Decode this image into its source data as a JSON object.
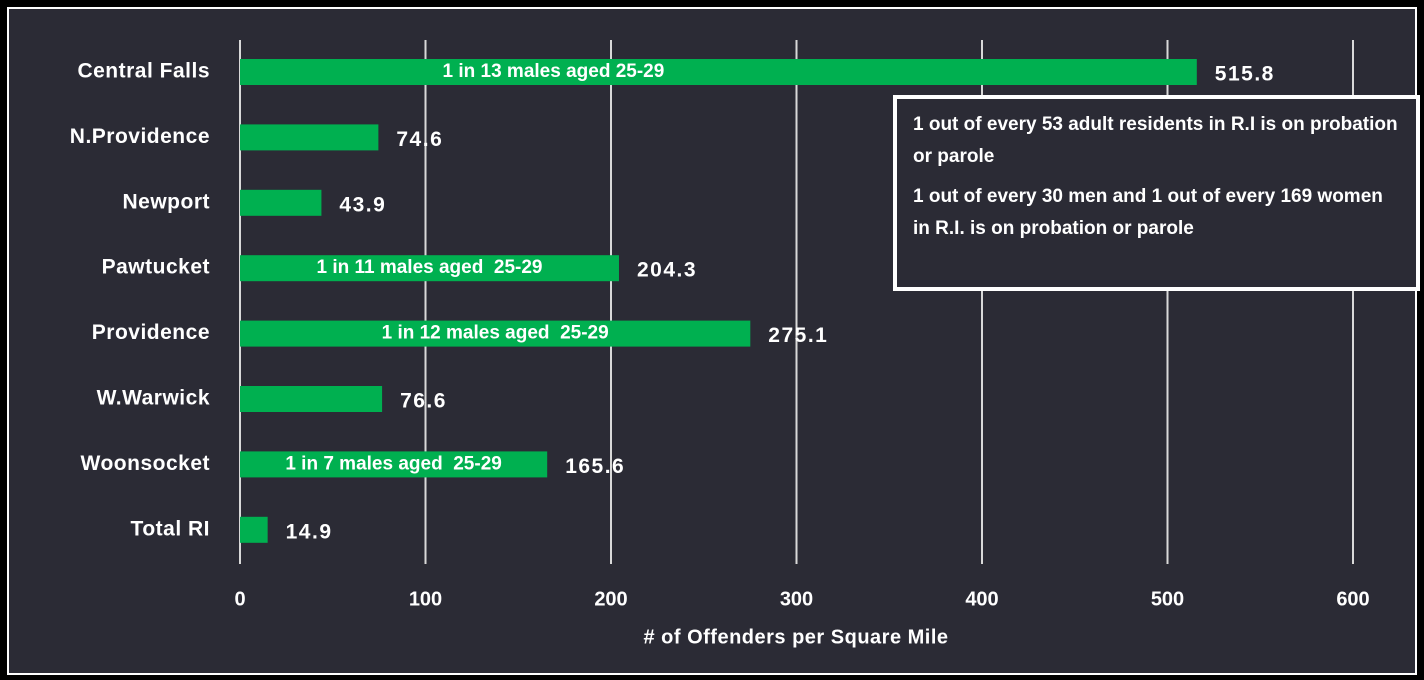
{
  "chart_data": {
    "type": "bar",
    "orientation": "horizontal",
    "categories": [
      "Central Falls",
      "N.Providence",
      "Newport",
      "Pawtucket",
      "Providence",
      "W.Warwick",
      "Woonsocket",
      "Total RI"
    ],
    "values": [
      515.8,
      74.6,
      43.9,
      204.3,
      275.1,
      76.6,
      165.6,
      14.9
    ],
    "bar_annotations": [
      "1 in 13 males aged 25-29",
      null,
      null,
      "1 in 11 males aged  25-29",
      "1 in 12 males aged  25-29",
      null,
      "1 in 7 males aged  25-29",
      null
    ],
    "color": "#00b050",
    "xlabel": "# of Offenders per Square Mile",
    "xlim": [
      0,
      600
    ],
    "xticks": [
      0,
      100,
      200,
      300,
      400,
      500,
      600
    ],
    "grid": true,
    "annotations": [
      "1 out of every 53 adult residents in R.I is on probation or parole",
      "1 out of every 30 men and 1 out of every 169 women in R.I. is on probation or parole"
    ]
  }
}
